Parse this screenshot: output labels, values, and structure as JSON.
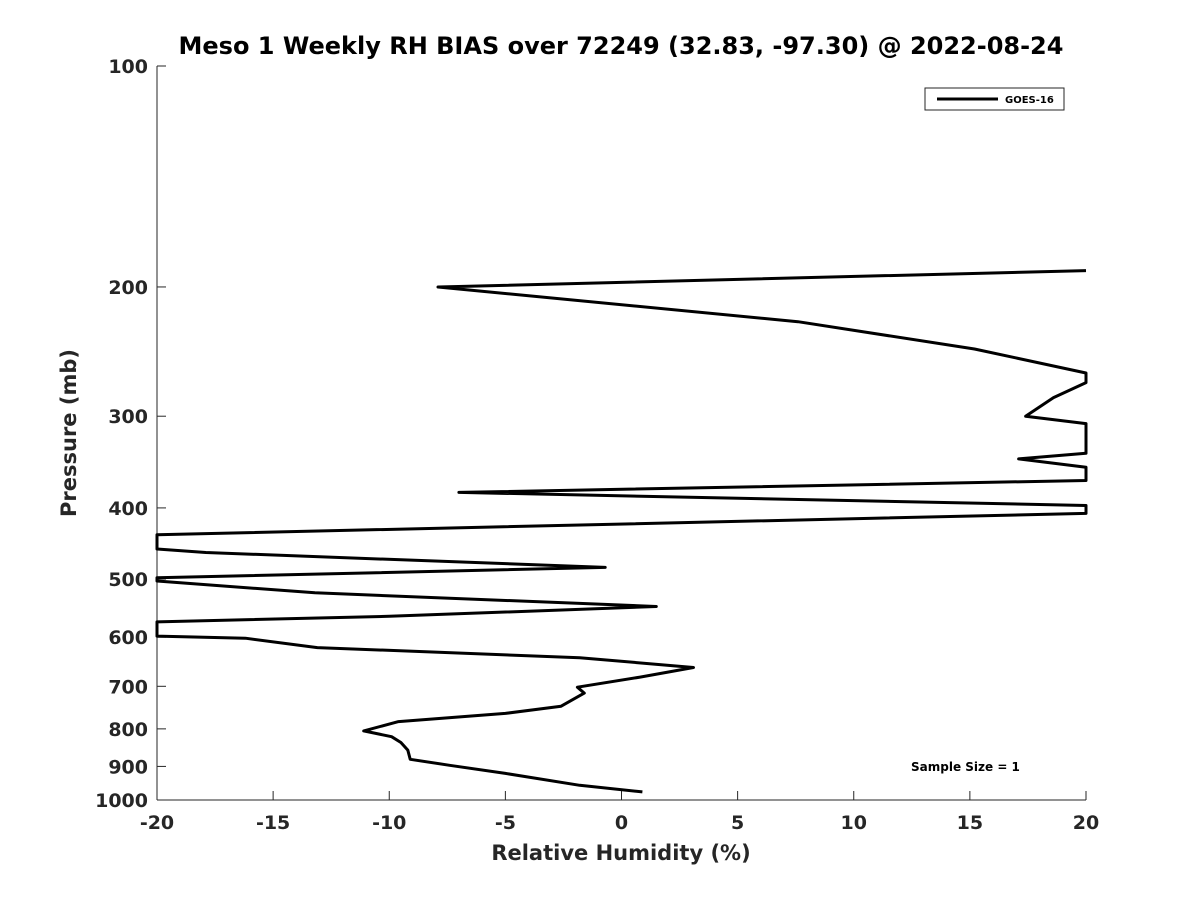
{
  "chart_data": {
    "type": "line",
    "title": "Meso 1 Weekly RH BIAS over 72249 (32.83, -97.30) @ 2022-08-24",
    "xlabel": "Relative Humidity (%)",
    "ylabel": "Pressure (mb)",
    "xlim": [
      -20,
      20
    ],
    "ylim": [
      1000,
      100
    ],
    "yscale": "log",
    "y_reversed": true,
    "xticks": [
      -20,
      -15,
      -10,
      -5,
      0,
      5,
      10,
      15,
      20
    ],
    "yticks": [
      100,
      200,
      300,
      400,
      500,
      600,
      700,
      800,
      900,
      1000
    ],
    "grid": false,
    "legend_position": "top-right",
    "annotation": "Sample Size = 1",
    "color": "#000000",
    "series": [
      {
        "name": "GOES-16",
        "points": [
          {
            "x": 0.9,
            "y": 975
          },
          {
            "x": -1.8,
            "y": 955
          },
          {
            "x": -5.0,
            "y": 920
          },
          {
            "x": -7.4,
            "y": 897
          },
          {
            "x": -9.1,
            "y": 880
          },
          {
            "x": -9.2,
            "y": 855
          },
          {
            "x": -9.5,
            "y": 835
          },
          {
            "x": -9.9,
            "y": 820
          },
          {
            "x": -11.1,
            "y": 805
          },
          {
            "x": -9.6,
            "y": 782
          },
          {
            "x": -5.0,
            "y": 762
          },
          {
            "x": -2.6,
            "y": 745
          },
          {
            "x": -1.6,
            "y": 715
          },
          {
            "x": -1.9,
            "y": 702
          },
          {
            "x": 0.8,
            "y": 680
          },
          {
            "x": 3.1,
            "y": 660
          },
          {
            "x": -1.8,
            "y": 640
          },
          {
            "x": -13.1,
            "y": 620
          },
          {
            "x": -16.2,
            "y": 602
          },
          {
            "x": -20,
            "y": 598
          },
          {
            "x": -20,
            "y": 594
          },
          {
            "x": -20,
            "y": 572
          },
          {
            "x": -10.0,
            "y": 562
          },
          {
            "x": 1.5,
            "y": 545
          },
          {
            "x": -13.2,
            "y": 522
          },
          {
            "x": -20,
            "y": 503
          },
          {
            "x": -20,
            "y": 498
          },
          {
            "x": -0.7,
            "y": 482
          },
          {
            "x": -17.9,
            "y": 460
          },
          {
            "x": -20,
            "y": 455
          },
          {
            "x": -20,
            "y": 435
          },
          {
            "x": 20,
            "y": 407
          },
          {
            "x": 20,
            "y": 397
          },
          {
            "x": -7.0,
            "y": 381
          },
          {
            "x": 20,
            "y": 367
          },
          {
            "x": 20,
            "y": 352
          },
          {
            "x": 17.1,
            "y": 343
          },
          {
            "x": 20,
            "y": 337
          },
          {
            "x": 20,
            "y": 307
          },
          {
            "x": 17.4,
            "y": 300
          },
          {
            "x": 18.6,
            "y": 283
          },
          {
            "x": 20,
            "y": 270
          },
          {
            "x": 20,
            "y": 262
          },
          {
            "x": 15.2,
            "y": 243
          },
          {
            "x": 7.6,
            "y": 223
          },
          {
            "x": -7.9,
            "y": 200
          },
          {
            "x": 20,
            "y": 190
          }
        ]
      }
    ]
  }
}
